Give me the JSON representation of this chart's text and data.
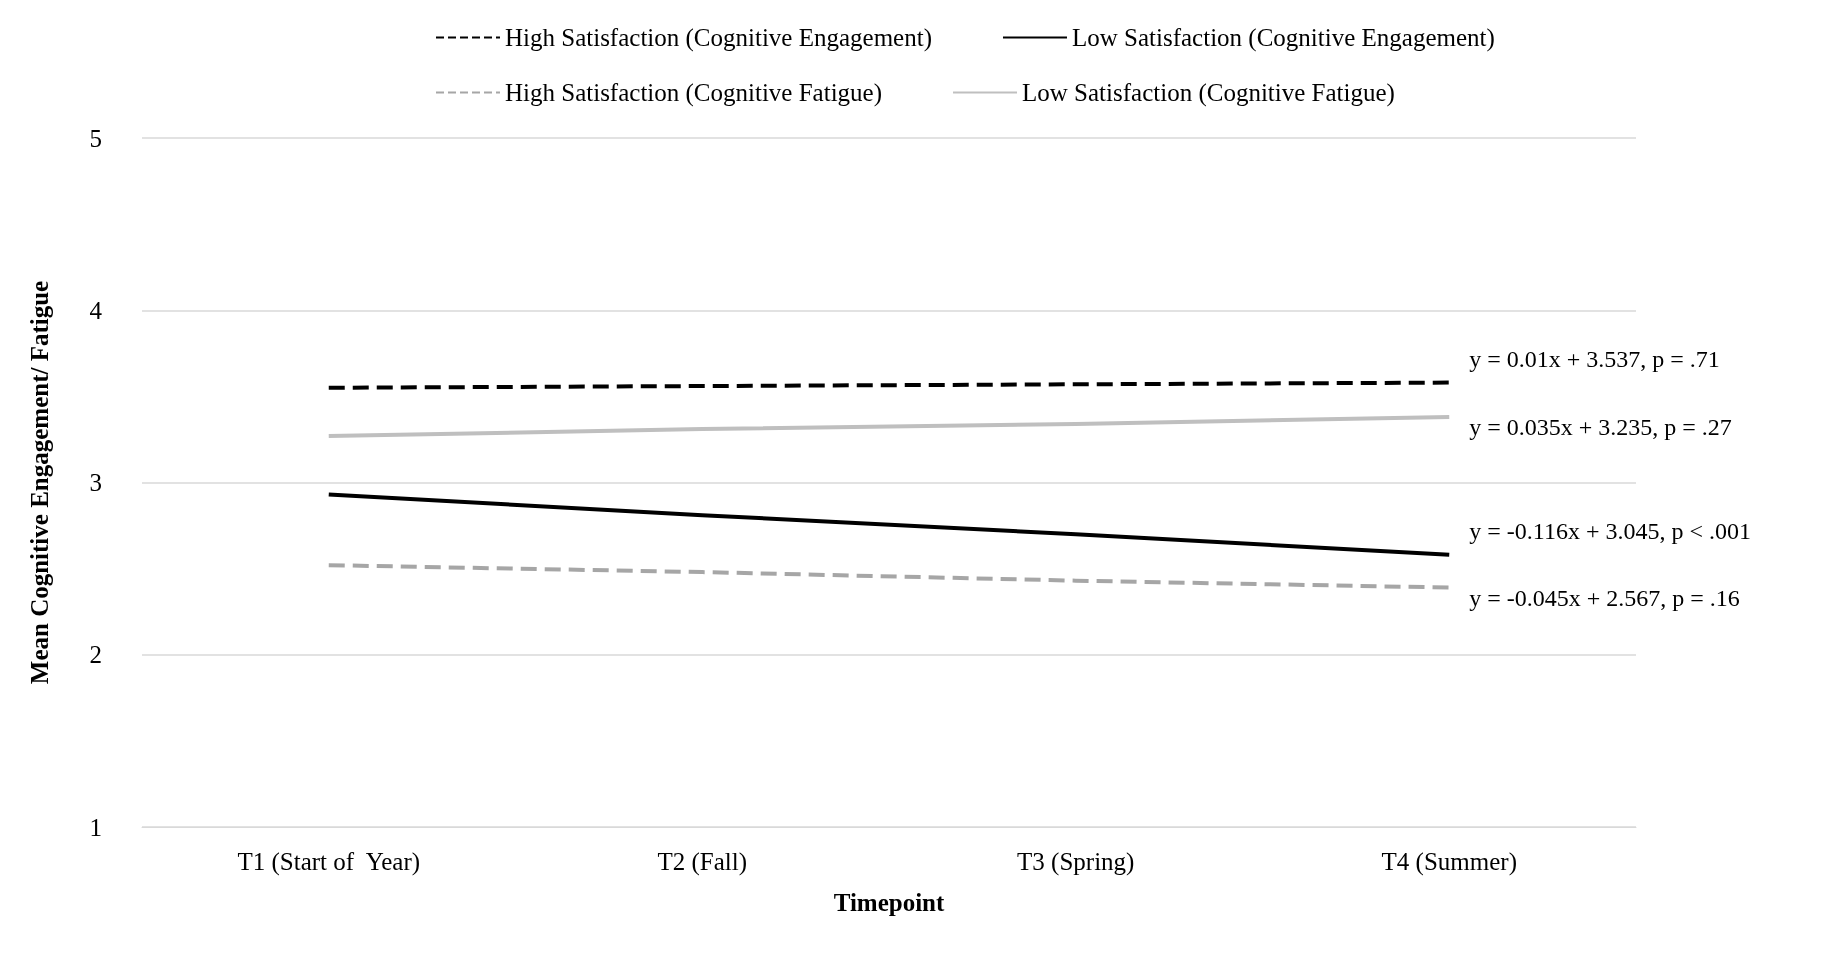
{
  "chart_data": {
    "type": "line",
    "xlabel": "Timepoint",
    "ylabel": "Mean Cognitive Engagement/ Fatigue",
    "categories": [
      "T1 (Start of  Year)",
      "T2 (Fall)",
      "T3 (Spring)",
      "T4 (Summer)"
    ],
    "series": [
      {
        "name": "High Satisfaction (Cognitive Engagement)",
        "color": "#000000",
        "line_style": "dashed",
        "values": [
          3.55,
          3.56,
          3.57,
          3.58
        ]
      },
      {
        "name": "Low Satisfaction (Cognitive Engagement)",
        "color": "#000000",
        "line_style": "solid",
        "values": [
          2.93,
          2.81,
          2.7,
          2.58
        ]
      },
      {
        "name": "High Satisfaction (Cognitive Fatigue)",
        "color": "#a6a6a6",
        "line_style": "dashed",
        "values": [
          2.52,
          2.48,
          2.43,
          2.39
        ]
      },
      {
        "name": "Low Satisfaction (Cognitive Fatigue)",
        "color": "#bfbfbf",
        "line_style": "solid",
        "values": [
          3.27,
          3.31,
          3.34,
          3.38
        ]
      }
    ],
    "ylim": [
      1,
      5
    ],
    "yticks": [
      1,
      2,
      3,
      4,
      5
    ],
    "grid": "y",
    "legend": "top",
    "marker": "none",
    "annotations": [
      {
        "text": "y = 0.01x + 3.537, p = .71",
        "x": "T4 (Summer)",
        "y": 3.58
      },
      {
        "text": "y = 0.035x + 3.235, p = .27",
        "x": "T4 (Summer)",
        "y": 3.38
      },
      {
        "text": "y = -0.116x + 3.045, p < .001",
        "x": "T4 (Summer)",
        "y": 2.58
      },
      {
        "text": "y = -0.045x + 2.567, p = .16",
        "x": "T4 (Summer)",
        "y": 2.39
      }
    ]
  }
}
